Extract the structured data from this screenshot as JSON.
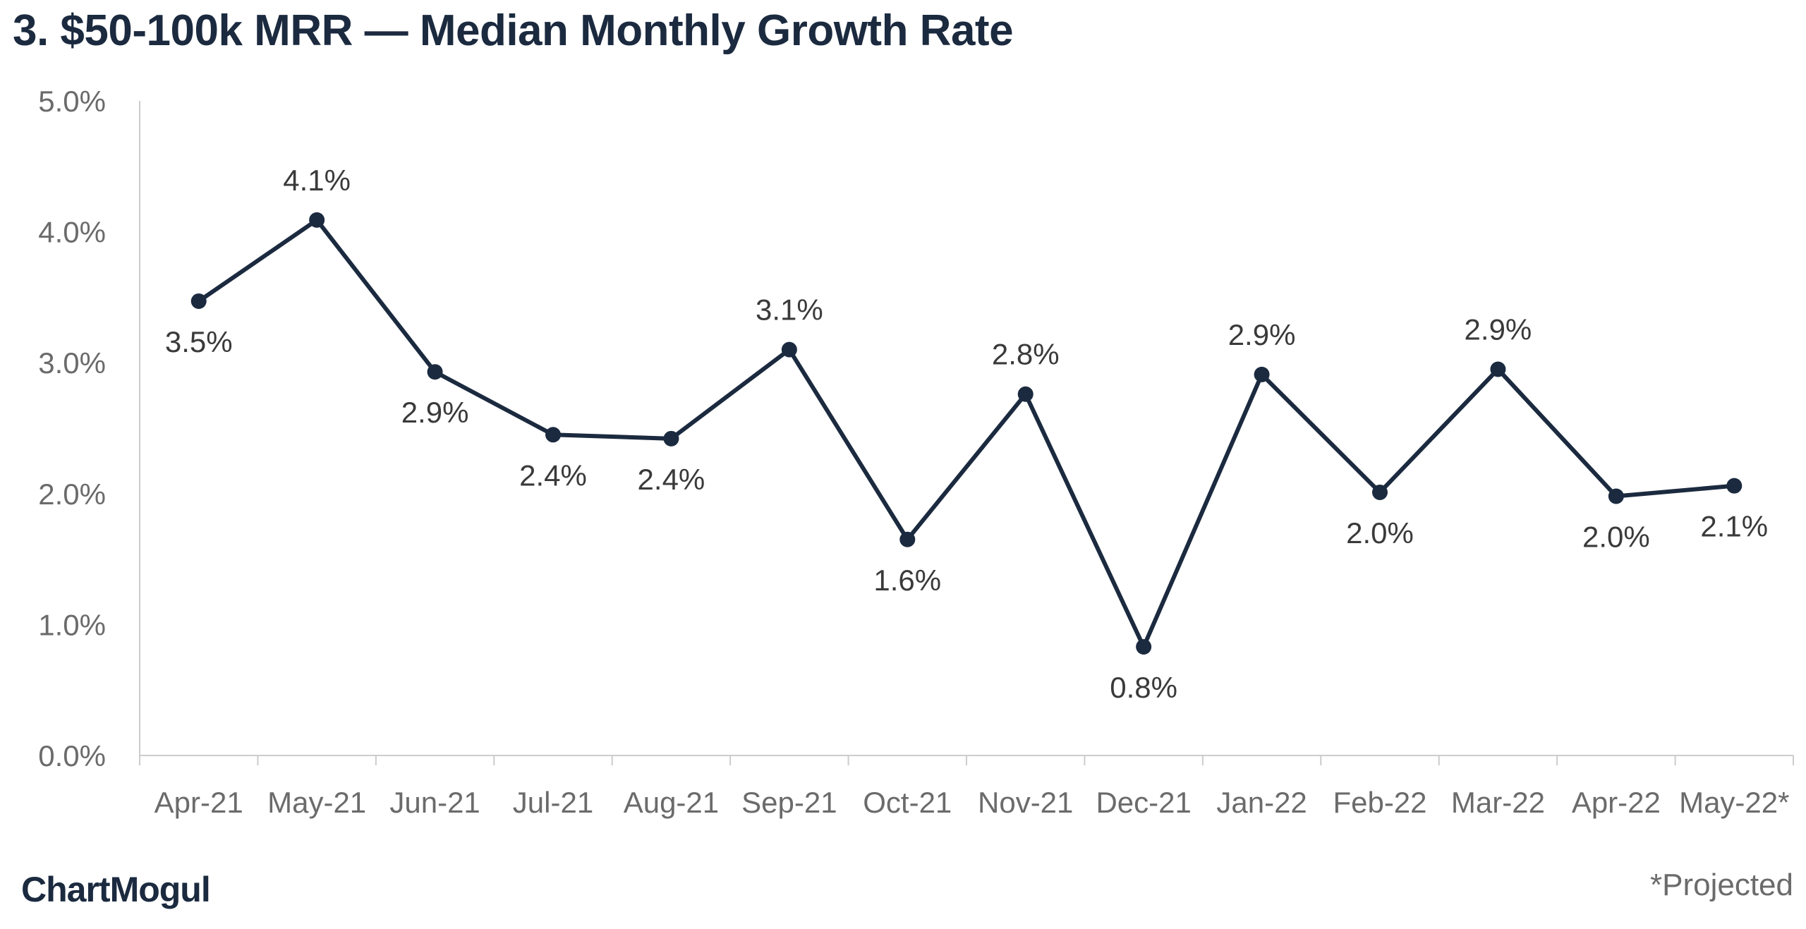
{
  "header": {
    "title": "3. $50-100k MRR — Median Monthly Growth Rate"
  },
  "footer": {
    "brand": "ChartMogul",
    "footnote": "*Projected"
  },
  "colors": {
    "series": "#1b2a3f",
    "axis": "#cccccc",
    "tick_text": "#6b6b6b"
  },
  "chart_data": {
    "type": "line",
    "title": "3. $50-100k MRR — Median Monthly Growth Rate",
    "xlabel": "",
    "ylabel": "",
    "categories": [
      "Apr-21",
      "May-21",
      "Jun-21",
      "Jul-21",
      "Aug-21",
      "Sep-21",
      "Oct-21",
      "Nov-21",
      "Dec-21",
      "Jan-22",
      "Feb-22",
      "Mar-22",
      "Apr-22",
      "May-22*"
    ],
    "series": [
      {
        "values": [
          3.47,
          4.09,
          2.93,
          2.45,
          2.42,
          3.1,
          1.65,
          2.76,
          0.83,
          2.91,
          2.01,
          2.95,
          1.98,
          2.06
        ],
        "labels": [
          "3.5%",
          "4.1%",
          "2.9%",
          "2.4%",
          "2.4%",
          "3.1%",
          "1.6%",
          "2.8%",
          "0.8%",
          "2.9%",
          "2.0%",
          "2.9%",
          "2.0%",
          "2.1%"
        ],
        "label_positions": [
          "below",
          "above",
          "below",
          "below",
          "below",
          "above",
          "below",
          "above",
          "below",
          "above",
          "below",
          "above",
          "below",
          "below"
        ]
      }
    ],
    "y_ticks": [
      "0.0%",
      "1.0%",
      "2.0%",
      "3.0%",
      "4.0%",
      "5.0%"
    ],
    "ylim": [
      0,
      5
    ],
    "grid": false,
    "legend": "none"
  }
}
